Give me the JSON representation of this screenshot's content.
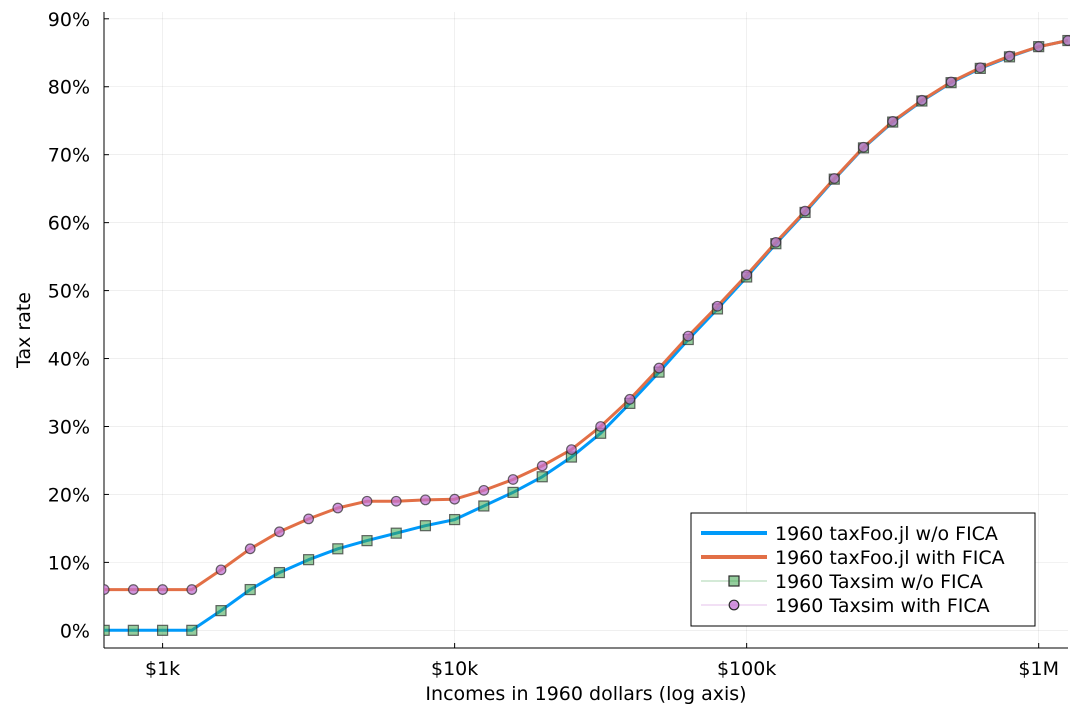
{
  "chart_data": {
    "type": "line",
    "xlabel": "Incomes in 1960 dollars (log axis)",
    "ylabel": "Tax rate",
    "x_scale": "log",
    "xlim": [
      630,
      1260000
    ],
    "ylim": [
      -0.026,
      0.91
    ],
    "x_ticks": [
      {
        "value": 1000,
        "label": "$1k"
      },
      {
        "value": 10000,
        "label": "$10k"
      },
      {
        "value": 100000,
        "label": "$100k"
      },
      {
        "value": 1000000,
        "label": "$1M"
      }
    ],
    "y_ticks": [
      {
        "value": 0.0,
        "label": "0%"
      },
      {
        "value": 0.1,
        "label": "10%"
      },
      {
        "value": 0.2,
        "label": "20%"
      },
      {
        "value": 0.3,
        "label": "30%"
      },
      {
        "value": 0.4,
        "label": "40%"
      },
      {
        "value": 0.5,
        "label": "50%"
      },
      {
        "value": 0.6,
        "label": "60%"
      },
      {
        "value": 0.7,
        "label": "70%"
      },
      {
        "value": 0.8,
        "label": "80%"
      },
      {
        "value": 0.9,
        "label": "90%"
      }
    ],
    "grid": true,
    "legend_position": "bottom-right",
    "x": [
      631,
      794,
      1000,
      1259,
      1585,
      1995,
      2512,
      3162,
      3981,
      5012,
      6310,
      7943,
      10000,
      12589,
      15849,
      19953,
      25119,
      31623,
      39811,
      50119,
      63096,
      79433,
      100000,
      125893,
      158489,
      199526,
      251189,
      316228,
      398107,
      501187,
      630957,
      794328,
      1000000,
      1258925
    ],
    "series": [
      {
        "name": "1960 taxFoo.jl w/o FICA",
        "style": "line",
        "color": "#009AF9",
        "values": [
          0.0,
          0.0,
          0.0,
          0.0,
          0.029,
          0.06,
          0.085,
          0.104,
          0.12,
          0.132,
          0.143,
          0.154,
          0.163,
          0.183,
          0.203,
          0.226,
          0.255,
          0.29,
          0.334,
          0.38,
          0.428,
          0.473,
          0.52,
          0.569,
          0.615,
          0.664,
          0.71,
          0.748,
          0.779,
          0.806,
          0.827,
          0.844,
          0.859,
          0.868
        ]
      },
      {
        "name": "1960 taxFoo.jl with FICA",
        "style": "line",
        "color": "#E26F46",
        "values": [
          0.06,
          0.06,
          0.06,
          0.06,
          0.089,
          0.12,
          0.145,
          0.164,
          0.18,
          0.19,
          0.19,
          0.192,
          0.193,
          0.206,
          0.222,
          0.242,
          0.266,
          0.3,
          0.34,
          0.386,
          0.433,
          0.477,
          0.523,
          0.571,
          0.617,
          0.665,
          0.711,
          0.749,
          0.78,
          0.807,
          0.828,
          0.845,
          0.859,
          0.868
        ]
      },
      {
        "name": "1960 Taxsim w/o FICA",
        "style": "markers",
        "marker": "square",
        "color": "#3DA44D",
        "values": [
          0.0,
          0.0,
          0.0,
          0.0,
          0.029,
          0.06,
          0.085,
          0.104,
          0.12,
          0.132,
          0.143,
          0.154,
          0.163,
          0.183,
          0.203,
          0.226,
          0.255,
          0.29,
          0.334,
          0.38,
          0.428,
          0.473,
          0.52,
          0.569,
          0.615,
          0.664,
          0.71,
          0.748,
          0.779,
          0.806,
          0.827,
          0.844,
          0.859,
          0.868
        ]
      },
      {
        "name": "1960 Taxsim with FICA",
        "style": "markers",
        "marker": "circle",
        "color": "#C271D2",
        "values": [
          0.06,
          0.06,
          0.06,
          0.06,
          0.089,
          0.12,
          0.145,
          0.164,
          0.18,
          0.19,
          0.19,
          0.192,
          0.193,
          0.206,
          0.222,
          0.242,
          0.266,
          0.3,
          0.34,
          0.386,
          0.433,
          0.477,
          0.523,
          0.571,
          0.617,
          0.665,
          0.711,
          0.749,
          0.78,
          0.807,
          0.828,
          0.845,
          0.859,
          0.868
        ]
      }
    ]
  }
}
